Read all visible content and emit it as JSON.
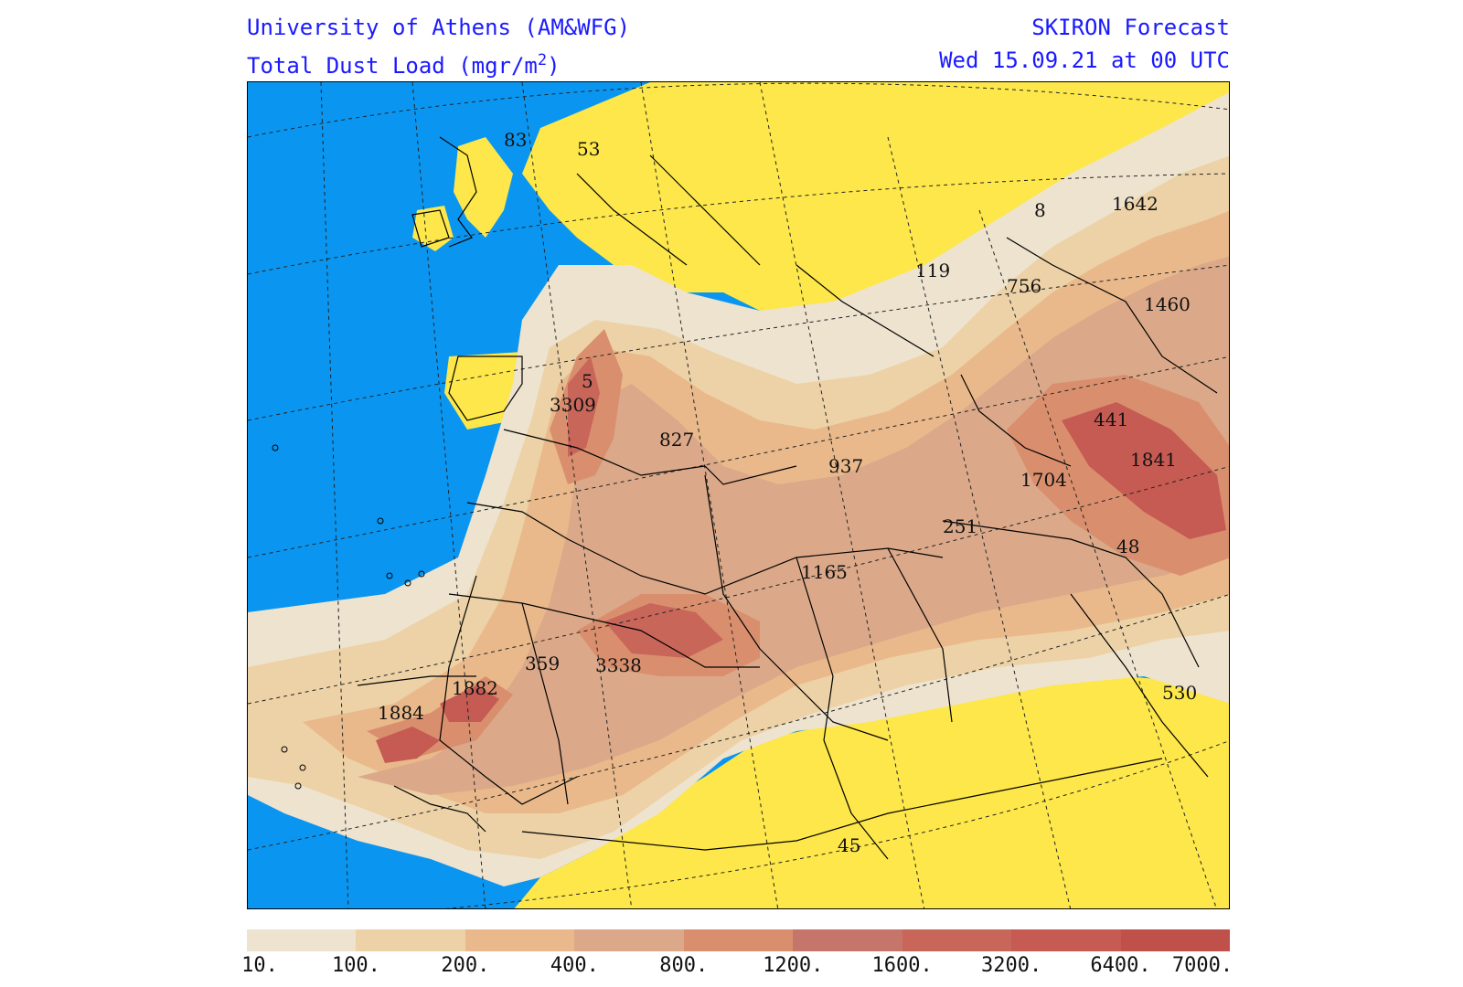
{
  "header": {
    "institution": "University of Athens (AM&WFG)",
    "product_prefix": "Total Dust Load (mgr/m",
    "product_exponent": "2",
    "product_suffix": ")",
    "model": "SKIRON Forecast",
    "valid_time": "Wed 15.09.21 at 00 UTC"
  },
  "colors": {
    "sea": "#0a96f0",
    "no_dust_land": "#fde74a",
    "border_line": "#000000"
  },
  "legend": {
    "thresholds": [
      "10.",
      "100.",
      "200.",
      "400.",
      "800.",
      "1200.",
      "1600.",
      "3200.",
      "6400.",
      "7000."
    ],
    "colors": [
      "#eee3cf",
      "#ecd2a6",
      "#e9b98b",
      "#dba989",
      "#d98f6e",
      "#c57569",
      "#c9665a",
      "#c55b53",
      "#c0504a"
    ]
  },
  "map_labels": [
    {
      "name": "label-83",
      "text": "83"
    },
    {
      "name": "label-53",
      "text": "53"
    },
    {
      "name": "label-8",
      "text": "8"
    },
    {
      "name": "label-1642",
      "text": "1642"
    },
    {
      "name": "label-119",
      "text": "119"
    },
    {
      "name": "label-756",
      "text": "756"
    },
    {
      "name": "label-1460",
      "text": "1460"
    },
    {
      "name": "label-5",
      "text": "5"
    },
    {
      "name": "label-3309",
      "text": "3309"
    },
    {
      "name": "label-827",
      "text": "827"
    },
    {
      "name": "label-441",
      "text": "441"
    },
    {
      "name": "label-937",
      "text": "937"
    },
    {
      "name": "label-1841",
      "text": "1841"
    },
    {
      "name": "label-1704",
      "text": "1704"
    },
    {
      "name": "label-251",
      "text": "251"
    },
    {
      "name": "label-48",
      "text": "48"
    },
    {
      "name": "label-1165",
      "text": "1165"
    },
    {
      "name": "label-359",
      "text": "359"
    },
    {
      "name": "label-3338",
      "text": "3338"
    },
    {
      "name": "label-1882",
      "text": "1882"
    },
    {
      "name": "label-1884",
      "text": "1884"
    },
    {
      "name": "label-530",
      "text": "530"
    },
    {
      "name": "label-45",
      "text": "45"
    }
  ]
}
